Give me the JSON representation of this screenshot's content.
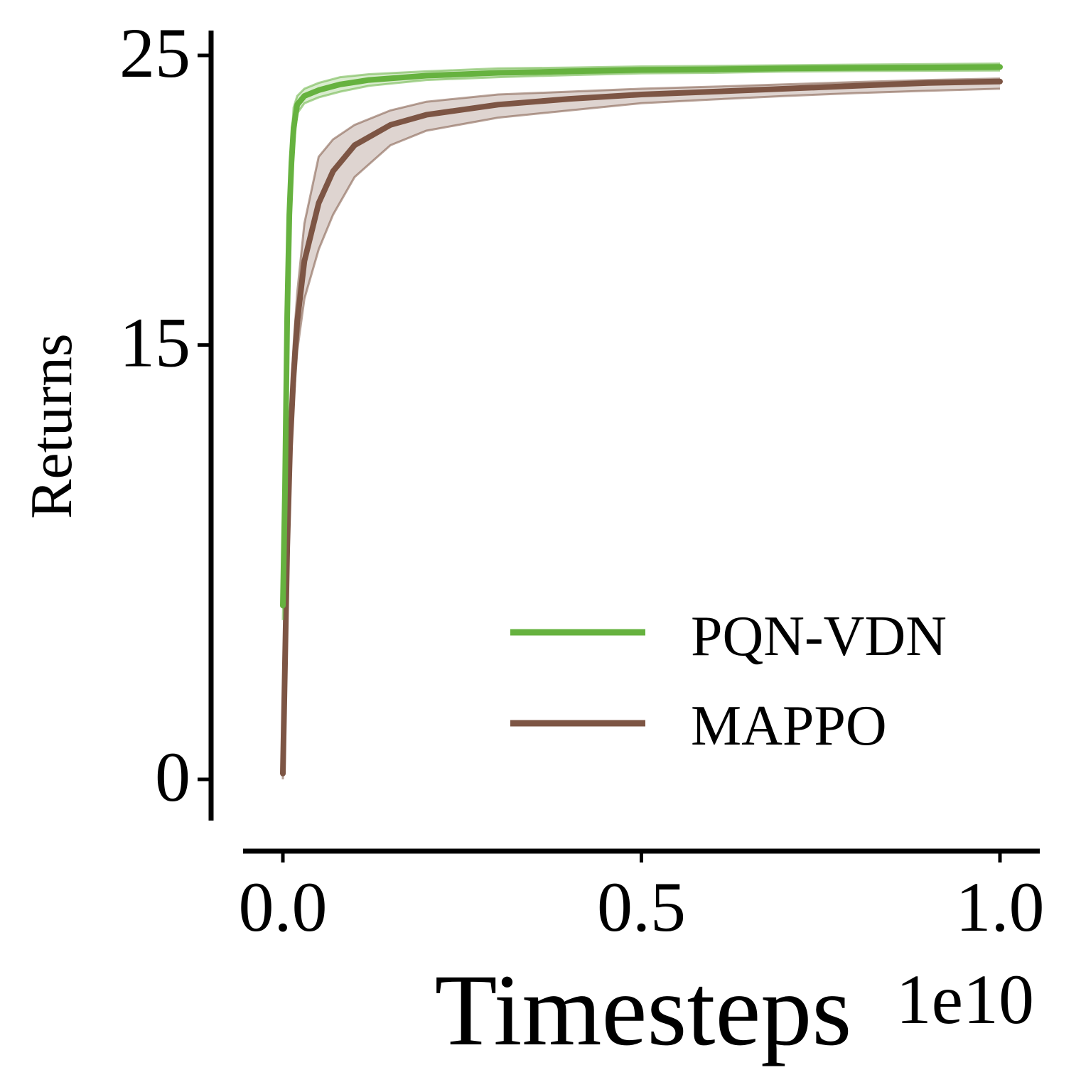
{
  "chart_data": {
    "type": "line",
    "title": "",
    "xlabel": "Timesteps",
    "ylabel": "Returns",
    "x_offset_label": "1e10",
    "xlim": [
      -0.05,
      1.05
    ],
    "ylim": [
      -1,
      26
    ],
    "xticks": [
      0.0,
      0.5,
      1.0
    ],
    "xtick_labels": [
      "0.0",
      "0.5",
      "1.0"
    ],
    "yticks": [
      0,
      15,
      25
    ],
    "ytick_labels": [
      "0",
      "15",
      "25"
    ],
    "grid": false,
    "legend_position": "lower-right",
    "series": [
      {
        "name": "PQN-VDN",
        "color": "#66b23f",
        "x": [
          0.0,
          0.003,
          0.006,
          0.009,
          0.012,
          0.015,
          0.02,
          0.03,
          0.05,
          0.08,
          0.12,
          0.2,
          0.3,
          0.4,
          0.5,
          0.6,
          0.7,
          0.8,
          0.9,
          1.0
        ],
        "y": [
          6.0,
          10.0,
          16.0,
          19.5,
          21.3,
          22.5,
          23.3,
          23.6,
          23.8,
          24.0,
          24.15,
          24.3,
          24.4,
          24.45,
          24.5,
          24.52,
          24.55,
          24.57,
          24.58,
          24.6
        ],
        "upper": [
          6.5,
          10.8,
          17.0,
          20.5,
          22.0,
          23.2,
          23.6,
          23.85,
          24.05,
          24.25,
          24.35,
          24.45,
          24.55,
          24.58,
          24.62,
          24.64,
          24.66,
          24.68,
          24.7,
          24.72
        ],
        "lower": [
          5.5,
          9.2,
          15.0,
          18.5,
          20.6,
          21.8,
          23.0,
          23.35,
          23.55,
          23.75,
          23.95,
          24.15,
          24.25,
          24.32,
          24.38,
          24.4,
          24.44,
          24.46,
          24.47,
          24.48
        ]
      },
      {
        "name": "MAPPO",
        "color": "#7d5544",
        "x": [
          0.0,
          0.003,
          0.006,
          0.01,
          0.015,
          0.02,
          0.03,
          0.05,
          0.07,
          0.1,
          0.15,
          0.2,
          0.3,
          0.4,
          0.5,
          0.6,
          0.7,
          0.8,
          0.9,
          1.0
        ],
        "y": [
          0.2,
          4.0,
          8.0,
          11.5,
          14.0,
          15.8,
          17.9,
          19.9,
          21.0,
          21.9,
          22.6,
          22.95,
          23.3,
          23.5,
          23.65,
          23.75,
          23.85,
          23.95,
          24.05,
          24.1
        ],
        "upper": [
          0.3,
          4.6,
          8.8,
          12.4,
          15.0,
          16.8,
          19.2,
          21.5,
          22.1,
          22.6,
          23.1,
          23.4,
          23.65,
          23.75,
          23.85,
          23.92,
          24.0,
          24.08,
          24.15,
          24.2
        ],
        "lower": [
          0.0,
          3.4,
          7.2,
          10.6,
          13.0,
          14.8,
          16.6,
          18.3,
          19.5,
          20.8,
          21.9,
          22.4,
          22.85,
          23.1,
          23.35,
          23.48,
          23.6,
          23.7,
          23.78,
          23.85
        ]
      }
    ]
  }
}
